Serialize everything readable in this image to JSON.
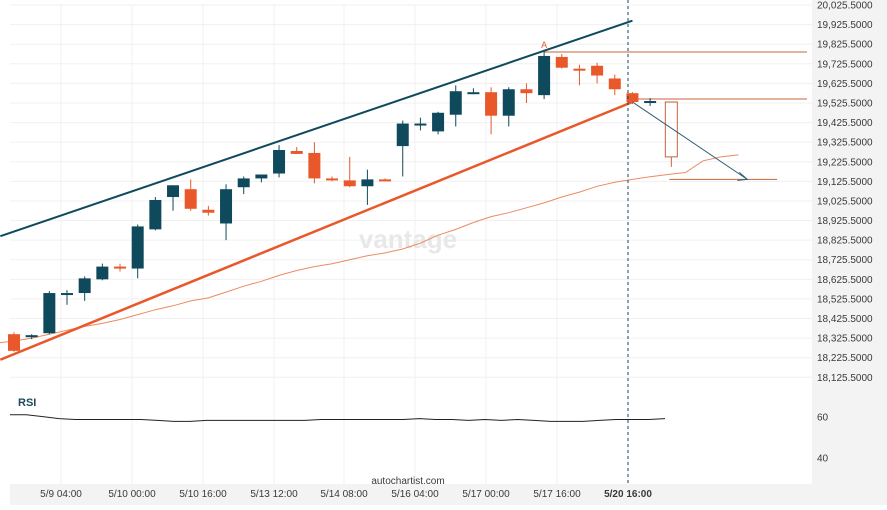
{
  "chart_data": {
    "type": "candlestick",
    "indicator_label": "RSI",
    "source_label": "autochartist.com",
    "watermark": "vantage",
    "pattern_point_label": "A",
    "colors": {
      "bull": "#0f4a5c",
      "bear": "#e8582a",
      "resistance": "#0f4a5c",
      "support": "#e8582a",
      "moving_average": "#ec8a66",
      "level_line": "#c8633d",
      "projection": "#2e5d6e",
      "rsi_line": "#222222",
      "grid": "#f0f0f0",
      "axis_bg": "#f3f3f3"
    },
    "y_axis": {
      "min": 18050,
      "max": 20025,
      "ticks": [
        "20,025.5000",
        "19,925.5000",
        "19,825.5000",
        "19,725.5000",
        "19,625.5000",
        "19,525.5000",
        "19,425.5000",
        "19,325.5000",
        "19,225.5000",
        "19,125.5000",
        "19,025.5000",
        "18,925.5000",
        "18,825.5000",
        "18,725.5000",
        "18,625.5000",
        "18,525.5000",
        "18,425.5000",
        "18,325.5000",
        "18,225.5000",
        "18,125.5000"
      ]
    },
    "rsi_axis": {
      "ticks": [
        "60",
        "40"
      ]
    },
    "x_ticks": [
      "5/9 04:00",
      "5/10 00:00",
      "5/10 16:00",
      "5/13 12:00",
      "5/14 08:00",
      "5/16 04:00",
      "5/17 00:00",
      "5/17 16:00",
      "5/20 16:00"
    ],
    "candles": [
      {
        "o": 18345,
        "h": 18355,
        "l": 18255,
        "c": 18260
      },
      {
        "o": 18335,
        "h": 18345,
        "l": 18320,
        "c": 18340
      },
      {
        "o": 18350,
        "h": 18565,
        "l": 18345,
        "c": 18555
      },
      {
        "o": 18545,
        "h": 18570,
        "l": 18495,
        "c": 18555
      },
      {
        "o": 18555,
        "h": 18640,
        "l": 18515,
        "c": 18630
      },
      {
        "o": 18625,
        "h": 18705,
        "l": 18620,
        "c": 18690
      },
      {
        "o": 18690,
        "h": 18705,
        "l": 18665,
        "c": 18680
      },
      {
        "o": 18680,
        "h": 18905,
        "l": 18630,
        "c": 18895
      },
      {
        "o": 18880,
        "h": 19045,
        "l": 18875,
        "c": 19030
      },
      {
        "o": 19045,
        "h": 19105,
        "l": 18975,
        "c": 19105
      },
      {
        "o": 19085,
        "h": 19135,
        "l": 18975,
        "c": 18985
      },
      {
        "o": 18980,
        "h": 19000,
        "l": 18950,
        "c": 18965
      },
      {
        "o": 18910,
        "h": 19110,
        "l": 18825,
        "c": 19085
      },
      {
        "o": 19095,
        "h": 19150,
        "l": 19060,
        "c": 19140
      },
      {
        "o": 19140,
        "h": 19160,
        "l": 19120,
        "c": 19160
      },
      {
        "o": 19165,
        "h": 19310,
        "l": 19145,
        "c": 19285
      },
      {
        "o": 19280,
        "h": 19300,
        "l": 19265,
        "c": 19265
      },
      {
        "o": 19270,
        "h": 19325,
        "l": 19115,
        "c": 19140
      },
      {
        "o": 19140,
        "h": 19150,
        "l": 19125,
        "c": 19135
      },
      {
        "o": 19130,
        "h": 19250,
        "l": 19095,
        "c": 19100
      },
      {
        "o": 19100,
        "h": 19185,
        "l": 19005,
        "c": 19135
      },
      {
        "o": 19135,
        "h": 19140,
        "l": 19125,
        "c": 19130
      },
      {
        "o": 19305,
        "h": 19435,
        "l": 19150,
        "c": 19420
      },
      {
        "o": 19420,
        "h": 19450,
        "l": 19385,
        "c": 19420
      },
      {
        "o": 19380,
        "h": 19480,
        "l": 19365,
        "c": 19475
      },
      {
        "o": 19465,
        "h": 19615,
        "l": 19405,
        "c": 19585
      },
      {
        "o": 19580,
        "h": 19600,
        "l": 19570,
        "c": 19580
      },
      {
        "o": 19580,
        "h": 19605,
        "l": 19365,
        "c": 19460
      },
      {
        "o": 19460,
        "h": 19605,
        "l": 19405,
        "c": 19595
      },
      {
        "o": 19595,
        "h": 19625,
        "l": 19525,
        "c": 19575
      },
      {
        "o": 19565,
        "h": 19795,
        "l": 19545,
        "c": 19765
      },
      {
        "o": 19760,
        "h": 19775,
        "l": 19700,
        "c": 19705
      },
      {
        "o": 19700,
        "h": 19720,
        "l": 19615,
        "c": 19690
      },
      {
        "o": 19715,
        "h": 19730,
        "l": 19625,
        "c": 19665
      },
      {
        "o": 19650,
        "h": 19670,
        "l": 19565,
        "c": 19595
      },
      {
        "o": 19575,
        "h": 19580,
        "l": 19520,
        "c": 19530
      },
      {
        "o": 19530,
        "h": 19550,
        "l": 19510,
        "c": 19535
      }
    ],
    "moving_average": [
      18300,
      18310,
      18325,
      18345,
      18365,
      18385,
      18400,
      18420,
      18445,
      18470,
      18490,
      18515,
      18530,
      18560,
      18590,
      18615,
      18645,
      18670,
      18690,
      18705,
      18725,
      18745,
      18760,
      18780,
      18810,
      18850,
      18880,
      18915,
      18945,
      18965,
      18990,
      19015,
      19045,
      19070,
      19100,
      19120,
      19135,
      19148,
      19160,
      19170,
      19230,
      19250,
      19260
    ],
    "resistance_line": {
      "from": {
        "i": -1,
        "y": 18845
      },
      "to": {
        "i": 35,
        "y": 19945
      }
    },
    "support_line": {
      "from": {
        "i": -1,
        "y": 18215
      },
      "to": {
        "i": 35,
        "y": 19530
      }
    },
    "level_A": 19785,
    "level_B": 19545,
    "forecast_level": 19135,
    "projection": {
      "from": {
        "i": 35,
        "y": 19530
      },
      "to": {
        "i": 41.5,
        "y": 19135
      }
    },
    "forecast_box": {
      "i": 37.2,
      "top": 19530,
      "bottom": 19250
    },
    "rsi_values": [
      55,
      55,
      57,
      59,
      60,
      60,
      60,
      60,
      60,
      61,
      62,
      62,
      61,
      61,
      61,
      61,
      61,
      61,
      61,
      60,
      60,
      60,
      60,
      60,
      60,
      59,
      60,
      60,
      61,
      60,
      61,
      60,
      61,
      62,
      62,
      62,
      61,
      60,
      60,
      60,
      59
    ]
  }
}
